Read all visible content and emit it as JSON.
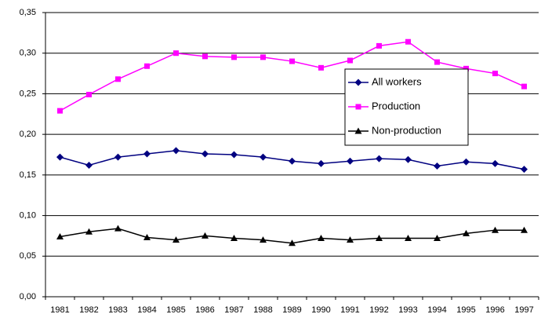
{
  "chart_data": {
    "type": "line",
    "categories": [
      "1981",
      "1982",
      "1983",
      "1984",
      "1985",
      "1986",
      "1987",
      "1988",
      "1989",
      "1990",
      "1991",
      "1992",
      "1993",
      "1994",
      "1995",
      "1996",
      "1997"
    ],
    "series": [
      {
        "name": "All workers",
        "color": "#000080",
        "marker": "diamond",
        "values": [
          0.172,
          0.162,
          0.172,
          0.176,
          0.18,
          0.176,
          0.175,
          0.172,
          0.167,
          0.164,
          0.167,
          0.17,
          0.169,
          0.161,
          0.166,
          0.164,
          0.157
        ]
      },
      {
        "name": "Production",
        "color": "#ff00ff",
        "marker": "square",
        "values": [
          0.229,
          0.249,
          0.268,
          0.284,
          0.3,
          0.296,
          0.295,
          0.295,
          0.29,
          0.282,
          0.291,
          0.309,
          0.314,
          0.289,
          0.281,
          0.275,
          0.259
        ]
      },
      {
        "name": "Non-production",
        "color": "#000000",
        "marker": "triangle",
        "values": [
          0.074,
          0.08,
          0.084,
          0.073,
          0.07,
          0.075,
          0.072,
          0.07,
          0.066,
          0.072,
          0.07,
          0.072,
          0.072,
          0.072,
          0.078,
          0.082,
          0.082
        ]
      }
    ],
    "ylim": [
      0,
      0.35
    ],
    "yticks": [
      {
        "value": 0,
        "label": "0,00"
      },
      {
        "value": 0.05,
        "label": "0,05"
      },
      {
        "value": 0.1,
        "label": "0,10"
      },
      {
        "value": 0.15,
        "label": "0,15"
      },
      {
        "value": 0.2,
        "label": "0,20"
      },
      {
        "value": 0.25,
        "label": "0,25"
      },
      {
        "value": 0.3,
        "label": "0,30"
      },
      {
        "value": 0.35,
        "label": "0,35"
      }
    ],
    "grid": true,
    "legend": "right"
  }
}
